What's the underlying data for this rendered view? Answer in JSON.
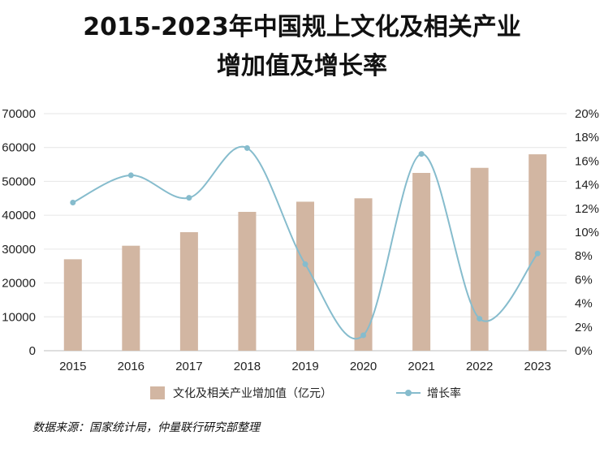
{
  "title_line1": "2015-2023年中国规上文化及相关产业",
  "title_line2": "增加值及增长率",
  "source": "数据来源：国家统计局，仲量联行研究部整理",
  "chart_data": {
    "type": "bar",
    "categories": [
      "2015",
      "2016",
      "2017",
      "2018",
      "2019",
      "2020",
      "2021",
      "2022",
      "2023"
    ],
    "series": [
      {
        "name": "文化及相关产业增加值（亿元）",
        "type": "bar",
        "axis": "left",
        "values": [
          27000,
          31000,
          35000,
          41000,
          44000,
          45000,
          52500,
          54000,
          58000
        ]
      },
      {
        "name": "增长率",
        "type": "line",
        "axis": "right",
        "values": [
          12.5,
          14.8,
          12.9,
          17.1,
          7.3,
          1.3,
          16.6,
          2.7,
          8.2
        ]
      }
    ],
    "y_left": {
      "min": 0,
      "max": 70000,
      "ticks": [
        "0",
        "10000",
        "20000",
        "30000",
        "40000",
        "50000",
        "60000",
        "70000"
      ]
    },
    "y_right": {
      "min": 0,
      "max": 20,
      "ticks": [
        "0%",
        "2%",
        "4%",
        "6%",
        "8%",
        "10%",
        "12%",
        "14%",
        "16%",
        "18%",
        "20%"
      ]
    },
    "grid": true,
    "legend_position": "bottom",
    "colors": {
      "bar": "#d2b6a2",
      "line": "#86bccd",
      "grid": "#e6e6e6"
    }
  }
}
